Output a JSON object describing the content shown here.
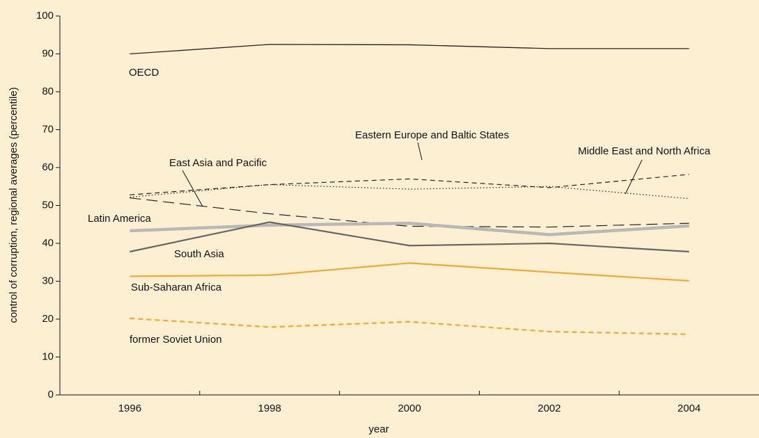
{
  "chart_data": {
    "type": "line",
    "xlabel": "year",
    "ylabel": "control of corruption, regional averages (percentile)",
    "x": [
      1996,
      1998,
      2000,
      2002,
      2004
    ],
    "xlim": [
      1995,
      2005
    ],
    "xticks": [
      1996,
      1998,
      2000,
      2002,
      2004
    ],
    "xminorticks": [
      1997,
      1999,
      2001,
      2003
    ],
    "ylim": [
      0,
      100
    ],
    "yticks": [
      0,
      10,
      20,
      30,
      40,
      50,
      60,
      70,
      80,
      90,
      100
    ],
    "background": "#fdf0d2",
    "series": [
      {
        "name": "OECD",
        "color": "#222222",
        "width": 1.3,
        "dash": "none",
        "values": [
          90,
          92.5,
          92.4,
          91.4,
          91.4
        ]
      },
      {
        "name": "Eastern Europe and Baltic States",
        "color": "#222222",
        "width": 1.2,
        "dash": "7 5",
        "values": [
          52.8,
          55.5,
          57,
          54.7,
          58.2
        ]
      },
      {
        "name": "Middle East and North Africa",
        "color": "#222222",
        "width": 1.2,
        "dash": "1.5 3",
        "values": [
          52.2,
          55.5,
          54.3,
          55,
          51.8
        ]
      },
      {
        "name": "East Asia and Pacific",
        "color": "#222222",
        "width": 1.2,
        "dash": "16 8",
        "values": [
          52,
          47.8,
          44.5,
          44.3,
          45.3
        ]
      },
      {
        "name": "Latin America",
        "color": "#b8b8b8",
        "width": 4.5,
        "dash": "none",
        "values": [
          43.3,
          44.8,
          45.3,
          42.3,
          44.6
        ]
      },
      {
        "name": "South Asia",
        "color": "#666666",
        "width": 2.2,
        "dash": "none",
        "values": [
          37.8,
          45.6,
          39.4,
          40,
          37.8
        ]
      },
      {
        "name": "Sub-Saharan Africa",
        "color": "#f0a830",
        "width": 2.2,
        "dash": "none",
        "values": [
          31.3,
          31.6,
          34.8,
          32.4,
          30.1
        ]
      },
      {
        "name": "former Soviet Union",
        "color": "#f0a830",
        "width": 2.2,
        "dash": "7 5",
        "values": [
          20.2,
          17.9,
          19.3,
          16.7,
          16
        ]
      }
    ]
  }
}
